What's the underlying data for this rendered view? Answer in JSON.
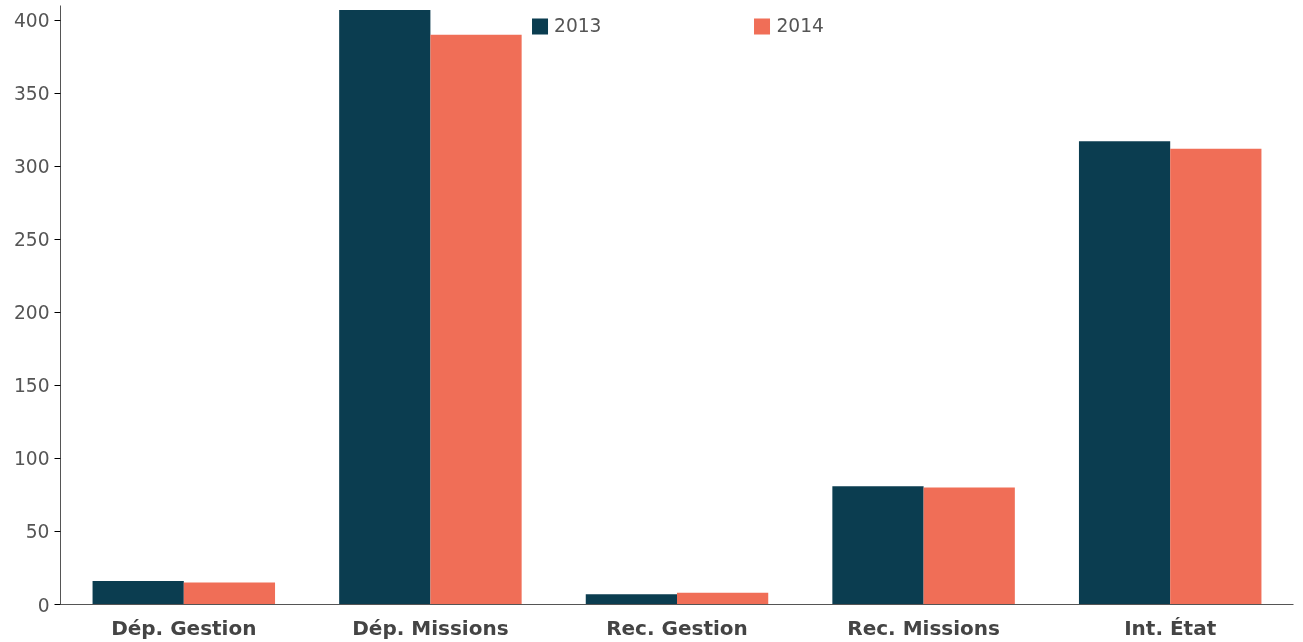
{
  "chart_data": {
    "type": "bar",
    "categories": [
      "Dép. Gestion",
      "Dép. Missions",
      "Rec. Gestion",
      "Rec. Missions",
      "Int. État"
    ],
    "series": [
      {
        "name": "2013",
        "color": "#0b3d50",
        "values": [
          16,
          407,
          7,
          81,
          317
        ]
      },
      {
        "name": "2014",
        "color": "#f06e57",
        "values": [
          15,
          390,
          8,
          80,
          312
        ]
      }
    ],
    "ylim": [
      0,
      410
    ],
    "yticks": [
      0,
      50,
      100,
      150,
      200,
      250,
      300,
      350,
      400
    ],
    "grid": false,
    "legend": "top"
  }
}
